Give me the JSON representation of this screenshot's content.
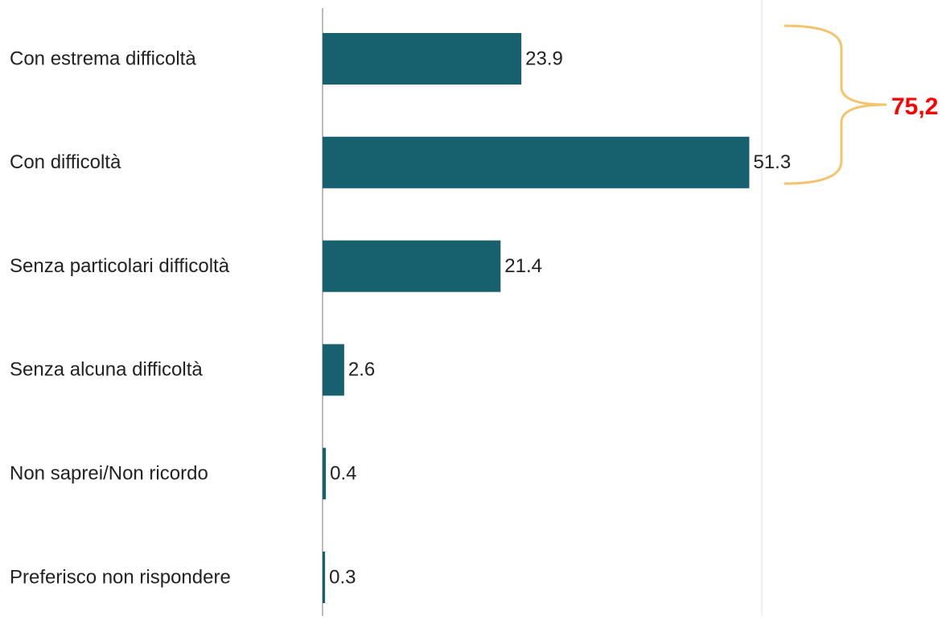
{
  "chart_data": {
    "type": "bar",
    "orientation": "horizontal",
    "categories": [
      "Con estrema difficoltà",
      "Con difficoltà",
      "Senza particolari difficoltà",
      "Senza alcuna difficoltà",
      "Non saprei/Non ricordo",
      "Preferisco non rispondere"
    ],
    "values": [
      23.9,
      51.3,
      21.4,
      2.6,
      0.4,
      0.3
    ],
    "color": "#17606e",
    "xlim": [
      0,
      52.8
    ],
    "annotation": {
      "text": "75,2",
      "color": "#ff0000",
      "brace_color": "#f5c36b"
    }
  }
}
